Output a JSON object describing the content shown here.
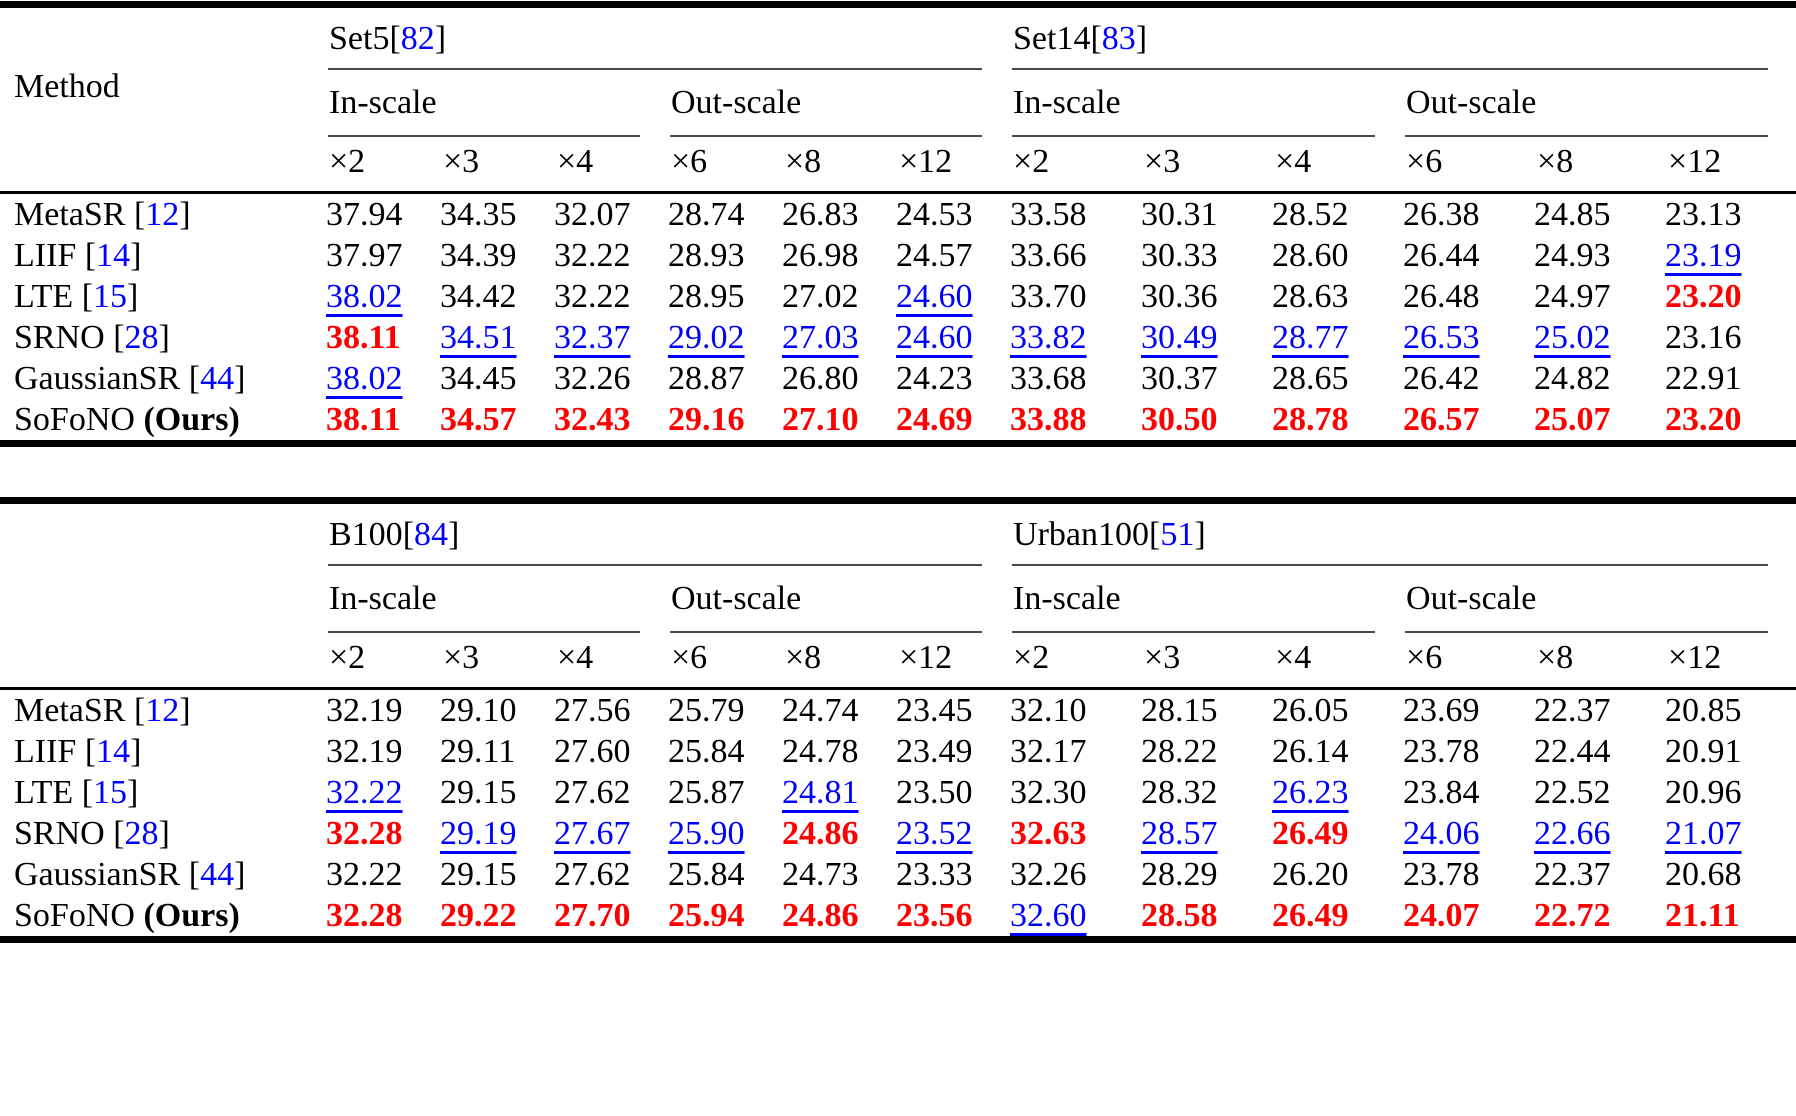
{
  "colors": {
    "best": "#ff0000",
    "second": "#0000ff",
    "cite": "#0000ff",
    "text": "#000000"
  },
  "tables": [
    {
      "corner_label": "Method",
      "groups": [
        {
          "name": "Set5",
          "cite": "82"
        },
        {
          "name": "Set14",
          "cite": "83"
        }
      ],
      "subheaders": [
        "In-scale",
        "Out-scale"
      ],
      "scales": [
        "×2",
        "×3",
        "×4",
        "×6",
        "×8",
        "×12"
      ],
      "rows": [
        {
          "method": "MetaSR",
          "cite": "12",
          "cells": [
            [
              "37.94",
              "n"
            ],
            [
              "34.35",
              "n"
            ],
            [
              "32.07",
              "n"
            ],
            [
              "28.74",
              "n"
            ],
            [
              "26.83",
              "n"
            ],
            [
              "24.53",
              "n"
            ],
            [
              "33.58",
              "n"
            ],
            [
              "30.31",
              "n"
            ],
            [
              "28.52",
              "n"
            ],
            [
              "26.38",
              "n"
            ],
            [
              "24.85",
              "n"
            ],
            [
              "23.13",
              "n"
            ]
          ]
        },
        {
          "method": "LIIF",
          "cite": "14",
          "cells": [
            [
              "37.97",
              "n"
            ],
            [
              "34.39",
              "n"
            ],
            [
              "32.22",
              "n"
            ],
            [
              "28.93",
              "n"
            ],
            [
              "26.98",
              "n"
            ],
            [
              "24.57",
              "n"
            ],
            [
              "33.66",
              "n"
            ],
            [
              "30.33",
              "n"
            ],
            [
              "28.60",
              "n"
            ],
            [
              "26.44",
              "n"
            ],
            [
              "24.93",
              "n"
            ],
            [
              "23.19",
              "b"
            ]
          ]
        },
        {
          "method": "LTE",
          "cite": "15",
          "cells": [
            [
              "38.02",
              "b"
            ],
            [
              "34.42",
              "n"
            ],
            [
              "32.22",
              "n"
            ],
            [
              "28.95",
              "n"
            ],
            [
              "27.02",
              "n"
            ],
            [
              "24.60",
              "b"
            ],
            [
              "33.70",
              "n"
            ],
            [
              "30.36",
              "n"
            ],
            [
              "28.63",
              "n"
            ],
            [
              "26.48",
              "n"
            ],
            [
              "24.97",
              "n"
            ],
            [
              "23.20",
              "r"
            ]
          ]
        },
        {
          "method": "SRNO",
          "cite": "28",
          "cells": [
            [
              "38.11",
              "r"
            ],
            [
              "34.51",
              "b"
            ],
            [
              "32.37",
              "b"
            ],
            [
              "29.02",
              "b"
            ],
            [
              "27.03",
              "b"
            ],
            [
              "24.60",
              "b"
            ],
            [
              "33.82",
              "b"
            ],
            [
              "30.49",
              "b"
            ],
            [
              "28.77",
              "b"
            ],
            [
              "26.53",
              "b"
            ],
            [
              "25.02",
              "b"
            ],
            [
              "23.16",
              "n"
            ]
          ]
        },
        {
          "method": "GaussianSR",
          "cite": "44",
          "cells": [
            [
              "38.02",
              "b"
            ],
            [
              "34.45",
              "n"
            ],
            [
              "32.26",
              "n"
            ],
            [
              "28.87",
              "n"
            ],
            [
              "26.80",
              "n"
            ],
            [
              "24.23",
              "n"
            ],
            [
              "33.68",
              "n"
            ],
            [
              "30.37",
              "n"
            ],
            [
              "28.65",
              "n"
            ],
            [
              "26.42",
              "n"
            ],
            [
              "24.82",
              "n"
            ],
            [
              "22.91",
              "n"
            ]
          ]
        },
        {
          "method": "SoFoNO",
          "ours": "(Ours)",
          "cells": [
            [
              "38.11",
              "r"
            ],
            [
              "34.57",
              "r"
            ],
            [
              "32.43",
              "r"
            ],
            [
              "29.16",
              "r"
            ],
            [
              "27.10",
              "r"
            ],
            [
              "24.69",
              "r"
            ],
            [
              "33.88",
              "r"
            ],
            [
              "30.50",
              "r"
            ],
            [
              "28.78",
              "r"
            ],
            [
              "26.57",
              "r"
            ],
            [
              "25.07",
              "r"
            ],
            [
              "23.20",
              "r"
            ]
          ]
        }
      ]
    },
    {
      "corner_label": "",
      "groups": [
        {
          "name": "B100",
          "cite": "84"
        },
        {
          "name": "Urban100",
          "cite": "51"
        }
      ],
      "subheaders": [
        "In-scale",
        "Out-scale"
      ],
      "scales": [
        "×2",
        "×3",
        "×4",
        "×6",
        "×8",
        "×12"
      ],
      "rows": [
        {
          "method": "MetaSR",
          "cite": "12",
          "cells": [
            [
              "32.19",
              "n"
            ],
            [
              "29.10",
              "n"
            ],
            [
              "27.56",
              "n"
            ],
            [
              "25.79",
              "n"
            ],
            [
              "24.74",
              "n"
            ],
            [
              "23.45",
              "n"
            ],
            [
              "32.10",
              "n"
            ],
            [
              "28.15",
              "n"
            ],
            [
              "26.05",
              "n"
            ],
            [
              "23.69",
              "n"
            ],
            [
              "22.37",
              "n"
            ],
            [
              "20.85",
              "n"
            ]
          ]
        },
        {
          "method": "LIIF",
          "cite": "14",
          "cells": [
            [
              "32.19",
              "n"
            ],
            [
              "29.11",
              "n"
            ],
            [
              "27.60",
              "n"
            ],
            [
              "25.84",
              "n"
            ],
            [
              "24.78",
              "n"
            ],
            [
              "23.49",
              "n"
            ],
            [
              "32.17",
              "n"
            ],
            [
              "28.22",
              "n"
            ],
            [
              "26.14",
              "n"
            ],
            [
              "23.78",
              "n"
            ],
            [
              "22.44",
              "n"
            ],
            [
              "20.91",
              "n"
            ]
          ]
        },
        {
          "method": "LTE",
          "cite": "15",
          "cells": [
            [
              "32.22",
              "b"
            ],
            [
              "29.15",
              "n"
            ],
            [
              "27.62",
              "n"
            ],
            [
              "25.87",
              "n"
            ],
            [
              "24.81",
              "b"
            ],
            [
              "23.50",
              "n"
            ],
            [
              "32.30",
              "n"
            ],
            [
              "28.32",
              "n"
            ],
            [
              "26.23",
              "b"
            ],
            [
              "23.84",
              "n"
            ],
            [
              "22.52",
              "n"
            ],
            [
              "20.96",
              "n"
            ]
          ]
        },
        {
          "method": "SRNO",
          "cite": "28",
          "cells": [
            [
              "32.28",
              "r"
            ],
            [
              "29.19",
              "b"
            ],
            [
              "27.67",
              "b"
            ],
            [
              "25.90",
              "b"
            ],
            [
              "24.86",
              "r"
            ],
            [
              "23.52",
              "b"
            ],
            [
              "32.63",
              "r"
            ],
            [
              "28.57",
              "b"
            ],
            [
              "26.49",
              "r"
            ],
            [
              "24.06",
              "b"
            ],
            [
              "22.66",
              "b"
            ],
            [
              "21.07",
              "b"
            ]
          ]
        },
        {
          "method": "GaussianSR",
          "cite": "44",
          "cells": [
            [
              "32.22",
              "n"
            ],
            [
              "29.15",
              "n"
            ],
            [
              "27.62",
              "n"
            ],
            [
              "25.84",
              "n"
            ],
            [
              "24.73",
              "n"
            ],
            [
              "23.33",
              "n"
            ],
            [
              "32.26",
              "n"
            ],
            [
              "28.29",
              "n"
            ],
            [
              "26.20",
              "n"
            ],
            [
              "23.78",
              "n"
            ],
            [
              "22.37",
              "n"
            ],
            [
              "20.68",
              "n"
            ]
          ]
        },
        {
          "method": "SoFoNO",
          "ours": "(Ours)",
          "cells": [
            [
              "32.28",
              "r"
            ],
            [
              "29.22",
              "r"
            ],
            [
              "27.70",
              "r"
            ],
            [
              "25.94",
              "r"
            ],
            [
              "24.86",
              "r"
            ],
            [
              "23.56",
              "r"
            ],
            [
              "32.60",
              "b"
            ],
            [
              "28.58",
              "r"
            ],
            [
              "26.49",
              "r"
            ],
            [
              "24.07",
              "r"
            ],
            [
              "22.72",
              "r"
            ],
            [
              "21.11",
              "r"
            ]
          ]
        }
      ]
    }
  ]
}
